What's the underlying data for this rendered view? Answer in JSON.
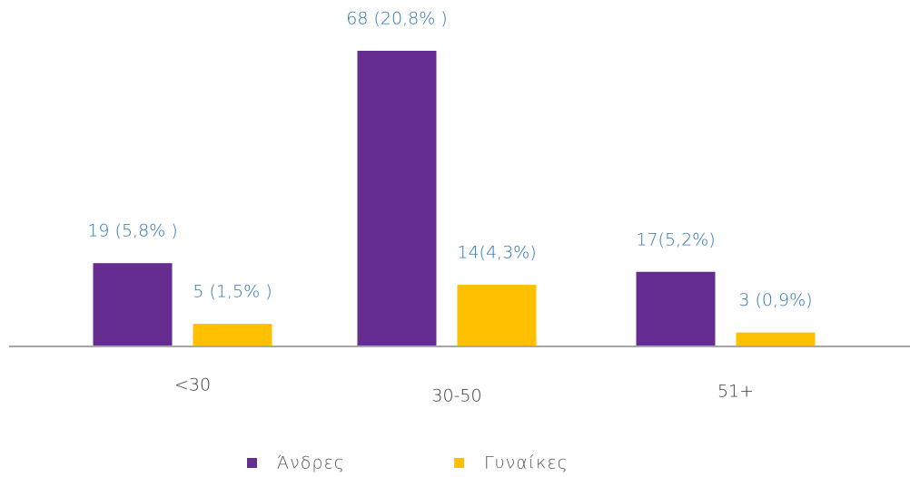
{
  "chart_data": {
    "type": "bar",
    "categories": [
      "<30",
      "30-50",
      "51+"
    ],
    "series": [
      {
        "name": "Άνδρες",
        "color": "#652d90",
        "values": [
          19,
          68,
          17
        ],
        "value_labels": [
          "19 (5,8% )",
          "68 (20,8% )",
          "17(5,2%)"
        ]
      },
      {
        "name": "Γυναίκες",
        "color": "#ffc000",
        "values": [
          5,
          14,
          3
        ],
        "value_labels": [
          "5 (1,5% )",
          "14(4,3%)",
          "3 (0,9%)"
        ]
      }
    ]
  }
}
